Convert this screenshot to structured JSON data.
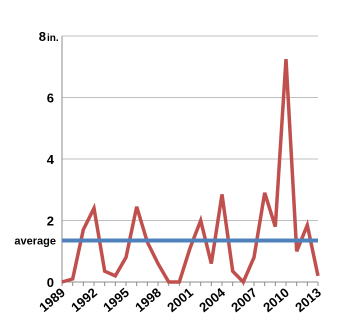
{
  "chart_data": {
    "type": "line",
    "y_unit_label": "in.",
    "x": [
      1989,
      1990,
      1991,
      1992,
      1993,
      1994,
      1995,
      1996,
      1997,
      1998,
      1999,
      2000,
      2001,
      2002,
      2003,
      2004,
      2005,
      2006,
      2007,
      2008,
      2009,
      2010,
      2011,
      2012,
      2013
    ],
    "series": [
      {
        "color": "#c0504d",
        "values": [
          0.0,
          0.1,
          1.7,
          2.4,
          0.35,
          0.2,
          0.8,
          2.45,
          1.3,
          0.6,
          0.0,
          0.0,
          1.1,
          2.0,
          0.6,
          2.85,
          0.35,
          0.0,
          0.8,
          2.9,
          1.8,
          7.25,
          1.0,
          1.85,
          0.2
        ]
      }
    ],
    "reference_line": {
      "label": "average",
      "value": 1.35,
      "color": "#4f81bd"
    },
    "xticks": [
      "1989",
      "1992",
      "1995",
      "1998",
      "2001",
      "2004",
      "2007",
      "2010",
      "2013"
    ],
    "yticks": [
      "0",
      "2",
      "4",
      "6",
      "8"
    ],
    "ylim": [
      0,
      8
    ],
    "xlim": [
      1989,
      2013
    ],
    "grid": true,
    "legend": "none"
  }
}
